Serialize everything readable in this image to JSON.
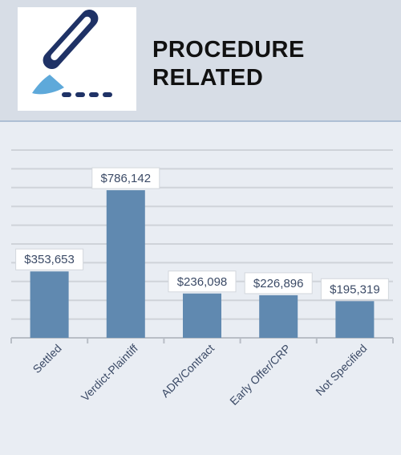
{
  "header": {
    "title_line1": "PROCEDURE",
    "title_line2": "RELATED",
    "icon": "scalpel-icon"
  },
  "colors": {
    "bar": "#6089b0",
    "header_bg": "#d7dde6",
    "chart_bg": "#e9edf3",
    "grid": "#cfd3d9",
    "label_text": "#3b4a66"
  },
  "chart_data": {
    "type": "bar",
    "categories": [
      "Settled",
      "Verdict-Plaintiff",
      "ADR/Contract",
      "Early Offer/CRP",
      "Not Specified"
    ],
    "values": [
      353653,
      786142,
      236098,
      226896,
      195319
    ],
    "data_labels": [
      "$353,653",
      "$786,142",
      "$236,098",
      "$226,896",
      "$195,319"
    ],
    "ylim": [
      0,
      1000000
    ],
    "grid": true,
    "legend": "none"
  }
}
